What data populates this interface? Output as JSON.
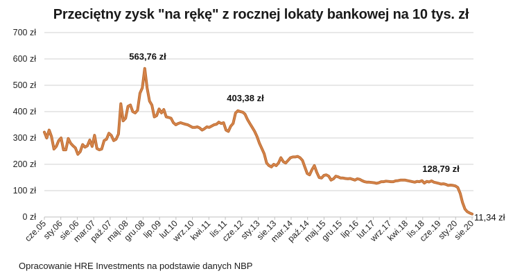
{
  "title": "Przeciętny zysk \"na rękę\" z rocznej lokaty bankowej na 10 tys. zł",
  "footer": "Opracowanie HRE Investments na podstawie danych NBP",
  "colors": {
    "line": "#d6844a",
    "line_edge": "#b8692f",
    "grid": "#d0d0d0",
    "axis": "#bfbfbf"
  },
  "chart_data": {
    "type": "line",
    "title": "Przeciętny zysk \"na rękę\" z rocznej lokaty bankowej na 10 tys. zł",
    "xlabel": "",
    "ylabel": "",
    "ylim": [
      0,
      700
    ],
    "y_ticks": [
      "0 zł",
      "100 zł",
      "200 zł",
      "300 zł",
      "400 zł",
      "500 zł",
      "600 zł",
      "700 zł"
    ],
    "x_tick_labels": [
      "cze.05",
      "sty.06",
      "sie.06",
      "mar.07",
      "paź.07",
      "maj.08",
      "gru.08",
      "lip.09",
      "lut.10",
      "wrz.10",
      "kwi.11",
      "lis.11",
      "cze.12",
      "sty.13",
      "sie.13",
      "mar.14",
      "paź.14",
      "maj.15",
      "gru.15",
      "lip.16",
      "lut.17",
      "wrz.17",
      "kwi.18",
      "lis.18",
      "cze.19",
      "sty.20",
      "sie.20"
    ],
    "grid": true,
    "legend": null,
    "annotations": [
      {
        "label": "563,76 zł",
        "x": "gru.08",
        "y": 563.76
      },
      {
        "label": "403,38 zł",
        "x": "lip.12",
        "y": 403.38
      },
      {
        "label": "128,79 zł",
        "x": "2019",
        "y": 128.79
      },
      {
        "label": "11,34 zł",
        "x": "sie.20",
        "y": 11.34
      }
    ],
    "series": [
      {
        "name": "Przeciętny zysk",
        "values": [
          322,
          300,
          330,
          305,
          258,
          268,
          290,
          300,
          255,
          255,
          298,
          280,
          270,
          262,
          238,
          248,
          275,
          265,
          270,
          292,
          268,
          310,
          260,
          255,
          258,
          290,
          295,
          318,
          310,
          290,
          295,
          315,
          430,
          365,
          375,
          420,
          425,
          400,
          395,
          405,
          470,
          490,
          563.76,
          490,
          440,
          425,
          380,
          385,
          410,
          395,
          408,
          380,
          378,
          375,
          358,
          350,
          355,
          358,
          355,
          352,
          350,
          345,
          340,
          340,
          342,
          338,
          330,
          335,
          342,
          340,
          345,
          350,
          352,
          360,
          355,
          358,
          330,
          325,
          345,
          355,
          395,
          403.38,
          400,
          398,
          390,
          370,
          355,
          340,
          325,
          305,
          280,
          260,
          240,
          205,
          195,
          190,
          200,
          195,
          205,
          225,
          210,
          205,
          215,
          225,
          228,
          228,
          230,
          225,
          215,
          190,
          165,
          160,
          180,
          195,
          170,
          150,
          148,
          158,
          160,
          155,
          140,
          145,
          155,
          152,
          148,
          148,
          146,
          145,
          146,
          143,
          140,
          145,
          143,
          138,
          134,
          132,
          132,
          131,
          130,
          128,
          130,
          134,
          134,
          136,
          135,
          134,
          134,
          137,
          138,
          140,
          140,
          140,
          138,
          136,
          134,
          132,
          135,
          134,
          138,
          128.79,
          135,
          133,
          137,
          132,
          130,
          128,
          125,
          126,
          124,
          120,
          121,
          120,
          118,
          112,
          90,
          55,
          30,
          20,
          15,
          11.34
        ]
      }
    ]
  }
}
